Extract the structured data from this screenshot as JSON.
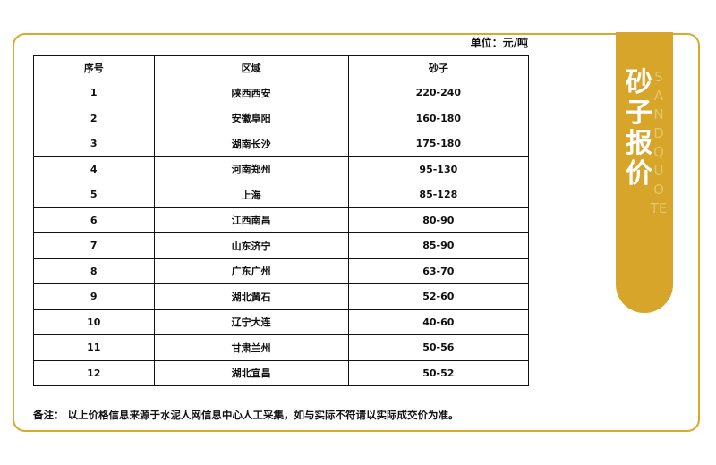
{
  "banner": {
    "title": "砂子报价",
    "watermark": "SANDQUOTE"
  },
  "unit": "单位：元/吨",
  "table": {
    "headers": [
      "序号",
      "区域",
      "砂子"
    ],
    "rows": [
      [
        "1",
        "陕西西安",
        "220-240"
      ],
      [
        "2",
        "安徽阜阳",
        "160-180"
      ],
      [
        "3",
        "湖南长沙",
        "175-180"
      ],
      [
        "4",
        "河南郑州",
        "95-130"
      ],
      [
        "5",
        "上海",
        "85-128"
      ],
      [
        "6",
        "江西南昌",
        "80-90"
      ],
      [
        "7",
        "山东济宁",
        "85-90"
      ],
      [
        "8",
        "广东广州",
        "63-70"
      ],
      [
        "9",
        "湖北黄石",
        "52-60"
      ],
      [
        "10",
        "辽宁大连",
        "40-60"
      ],
      [
        "11",
        "甘肃兰州",
        "50-56"
      ],
      [
        "12",
        "湖北宜昌",
        "50-52"
      ]
    ]
  },
  "note": "备注：  以上价格信息来源于水泥人网信息中心人工采集，如与实际不符请以实际成交价为准。",
  "colors": {
    "accent": "#d6a52a"
  }
}
